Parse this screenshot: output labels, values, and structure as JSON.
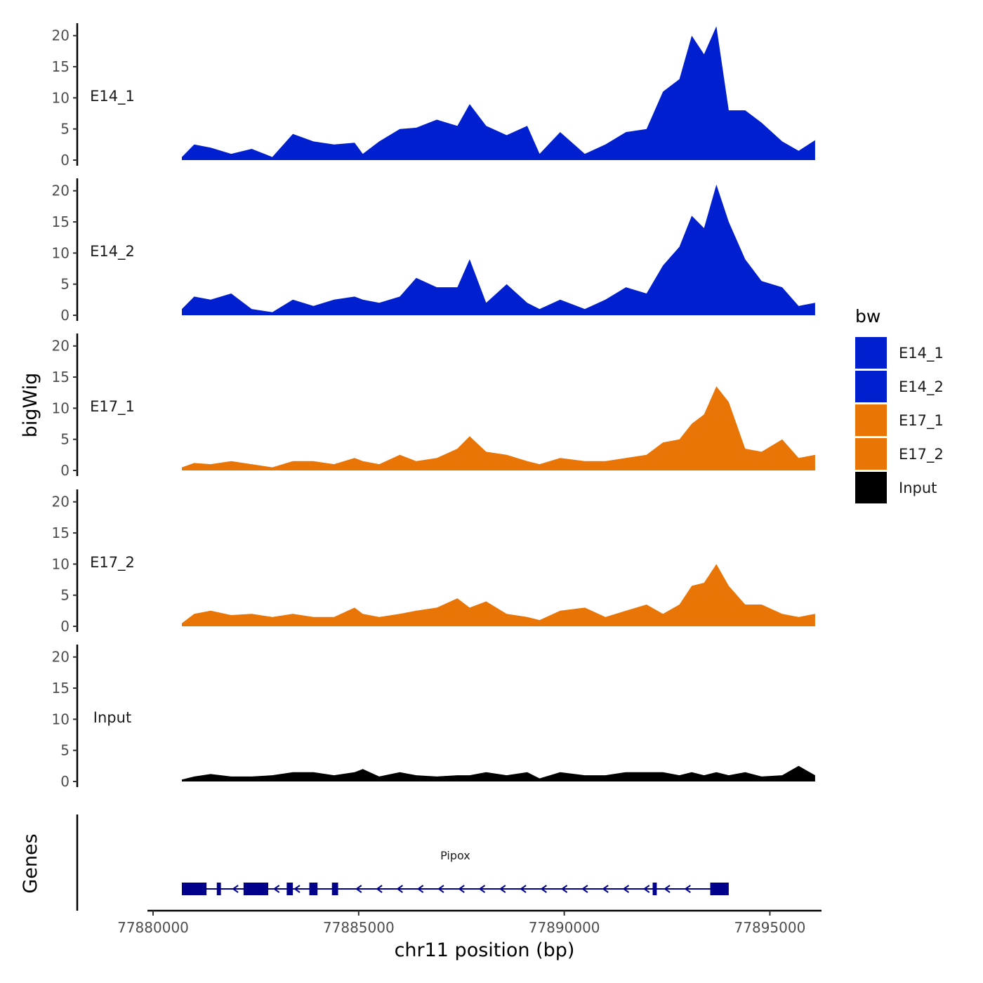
{
  "chart_data": {
    "type": "area",
    "title": "",
    "xlabel": "chr11 position (bp)",
    "ylabel": "bigWig",
    "genes_panel_label": "Genes",
    "xlim": [
      77880000,
      77896000
    ],
    "ylim": [
      0,
      22
    ],
    "x_ticks": [
      77880000,
      77885000,
      77890000,
      77895000
    ],
    "x_tick_labels": [
      "77880000",
      "77885000",
      "77890000",
      "77895000"
    ],
    "y_ticks": [
      0,
      5,
      10,
      15,
      20
    ],
    "y_tick_labels": [
      "0",
      "5",
      "10",
      "15",
      "20"
    ],
    "legend": {
      "title": "bw",
      "position": "right",
      "entries": [
        {
          "label": "E14_1",
          "color": "#0020d0"
        },
        {
          "label": "E14_2",
          "color": "#0020d0"
        },
        {
          "label": "E17_1",
          "color": "#e87505"
        },
        {
          "label": "E17_2",
          "color": "#e87505"
        },
        {
          "label": "Input",
          "color": "#000000"
        }
      ]
    },
    "x": [
      77880700,
      77881000,
      77881400,
      77881900,
      77882400,
      77882900,
      77883400,
      77883900,
      77884400,
      77884900,
      77885100,
      77885500,
      77886000,
      77886400,
      77886900,
      77887400,
      77887700,
      77888100,
      77888600,
      77889100,
      77889400,
      77889900,
      77890500,
      77891000,
      77891500,
      77892000,
      77892400,
      77892800,
      77893100,
      77893400,
      77893700,
      77894000,
      77894400,
      77894800,
      77895300,
      77895700,
      77896100
    ],
    "series": [
      {
        "name": "E14_1",
        "color": "#0020d0",
        "values": [
          0.5,
          2.5,
          2.0,
          1.0,
          1.8,
          0.5,
          4.2,
          3.0,
          2.5,
          2.8,
          1.0,
          3.0,
          5.0,
          5.2,
          6.5,
          5.5,
          9.0,
          5.5,
          4.0,
          5.5,
          1.0,
          4.5,
          1.0,
          2.5,
          4.5,
          5.0,
          11.0,
          13.0,
          20.0,
          17.0,
          21.5,
          8.0,
          8.0,
          6.0,
          3.0,
          1.5,
          3.2
        ]
      },
      {
        "name": "E14_2",
        "color": "#0020d0",
        "values": [
          1.0,
          3.0,
          2.5,
          3.5,
          1.0,
          0.5,
          2.5,
          1.5,
          2.5,
          3.0,
          2.5,
          2.0,
          3.0,
          6.0,
          4.5,
          4.5,
          9.0,
          2.0,
          5.0,
          2.0,
          1.0,
          2.5,
          1.0,
          2.5,
          4.5,
          3.5,
          8.0,
          11.0,
          16.0,
          14.0,
          21.0,
          15.0,
          9.0,
          5.5,
          4.5,
          1.5,
          2.0
        ]
      },
      {
        "name": "E17_1",
        "color": "#e87505",
        "values": [
          0.5,
          1.2,
          1.0,
          1.5,
          1.0,
          0.5,
          1.5,
          1.5,
          1.0,
          2.0,
          1.5,
          1.0,
          2.5,
          1.5,
          2.0,
          3.5,
          5.5,
          3.0,
          2.5,
          1.5,
          1.0,
          2.0,
          1.5,
          1.5,
          2.0,
          2.5,
          4.5,
          5.0,
          7.5,
          9.0,
          13.5,
          11.0,
          3.5,
          3.0,
          5.0,
          2.0,
          2.5
        ]
      },
      {
        "name": "E17_2",
        "color": "#e87505",
        "values": [
          0.5,
          2.0,
          2.5,
          1.8,
          2.0,
          1.5,
          2.0,
          1.5,
          1.5,
          3.0,
          2.0,
          1.5,
          2.0,
          2.5,
          3.0,
          4.5,
          3.0,
          4.0,
          2.0,
          1.5,
          1.0,
          2.5,
          3.0,
          1.5,
          2.5,
          3.5,
          2.0,
          3.5,
          6.5,
          7.0,
          10.0,
          6.5,
          3.5,
          3.5,
          2.0,
          1.5,
          2.0
        ]
      },
      {
        "name": "Input",
        "color": "#000000",
        "values": [
          0.3,
          0.8,
          1.2,
          0.8,
          0.8,
          1.0,
          1.5,
          1.5,
          1.0,
          1.5,
          2.0,
          0.8,
          1.5,
          1.0,
          0.8,
          1.0,
          1.0,
          1.5,
          1.0,
          1.5,
          0.5,
          1.5,
          1.0,
          1.0,
          1.5,
          1.5,
          1.5,
          1.0,
          1.5,
          1.0,
          1.5,
          1.0,
          1.5,
          0.8,
          1.0,
          2.5,
          1.0
        ]
      }
    ],
    "genes": [
      {
        "name": "Pipox",
        "start": 77880700,
        "end": 77894000,
        "strand": "-",
        "exons": [
          [
            77880700,
            77881300
          ],
          [
            77881550,
            77881650
          ],
          [
            77882200,
            77882800
          ],
          [
            77883250,
            77883400
          ],
          [
            77883800,
            77884000
          ],
          [
            77884350,
            77884500
          ],
          [
            77892150,
            77892250
          ],
          [
            77893550,
            77894000
          ]
        ]
      }
    ]
  }
}
